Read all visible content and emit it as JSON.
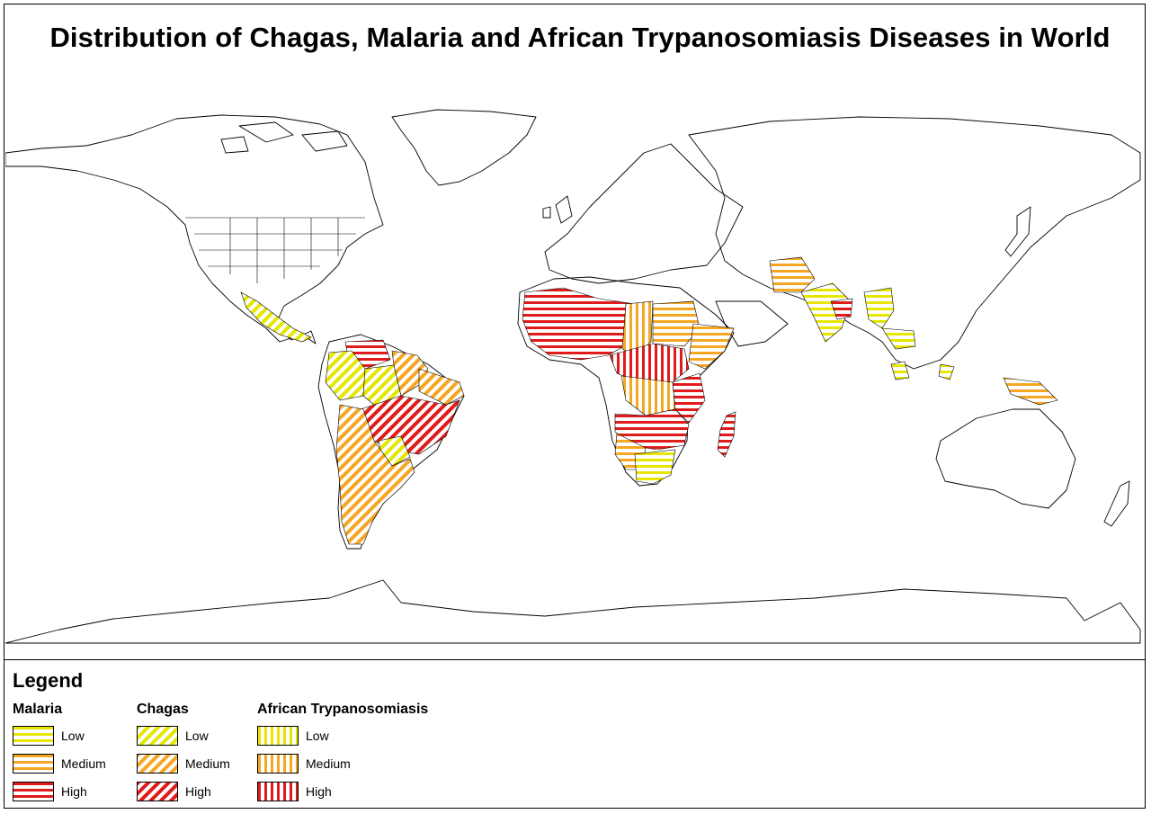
{
  "map_title": "Distribution of Chagas, Malaria and African Trypanosomiasis Diseases in World",
  "legend": {
    "title": "Legend",
    "groups": [
      {
        "name": "Malaria",
        "pattern": "horizontal",
        "levels": [
          "Low",
          "Medium",
          "High"
        ]
      },
      {
        "name": "Chagas",
        "pattern": "diagonal",
        "levels": [
          "Low",
          "Medium",
          "High"
        ]
      },
      {
        "name": "African Trypanosomiasis",
        "pattern": "vertical",
        "levels": [
          "Low",
          "Medium",
          "High"
        ]
      }
    ]
  },
  "colors": {
    "low": "#e6e600",
    "medium": "#f5a623",
    "high": "#e01b1b",
    "outline": "#000000"
  }
}
